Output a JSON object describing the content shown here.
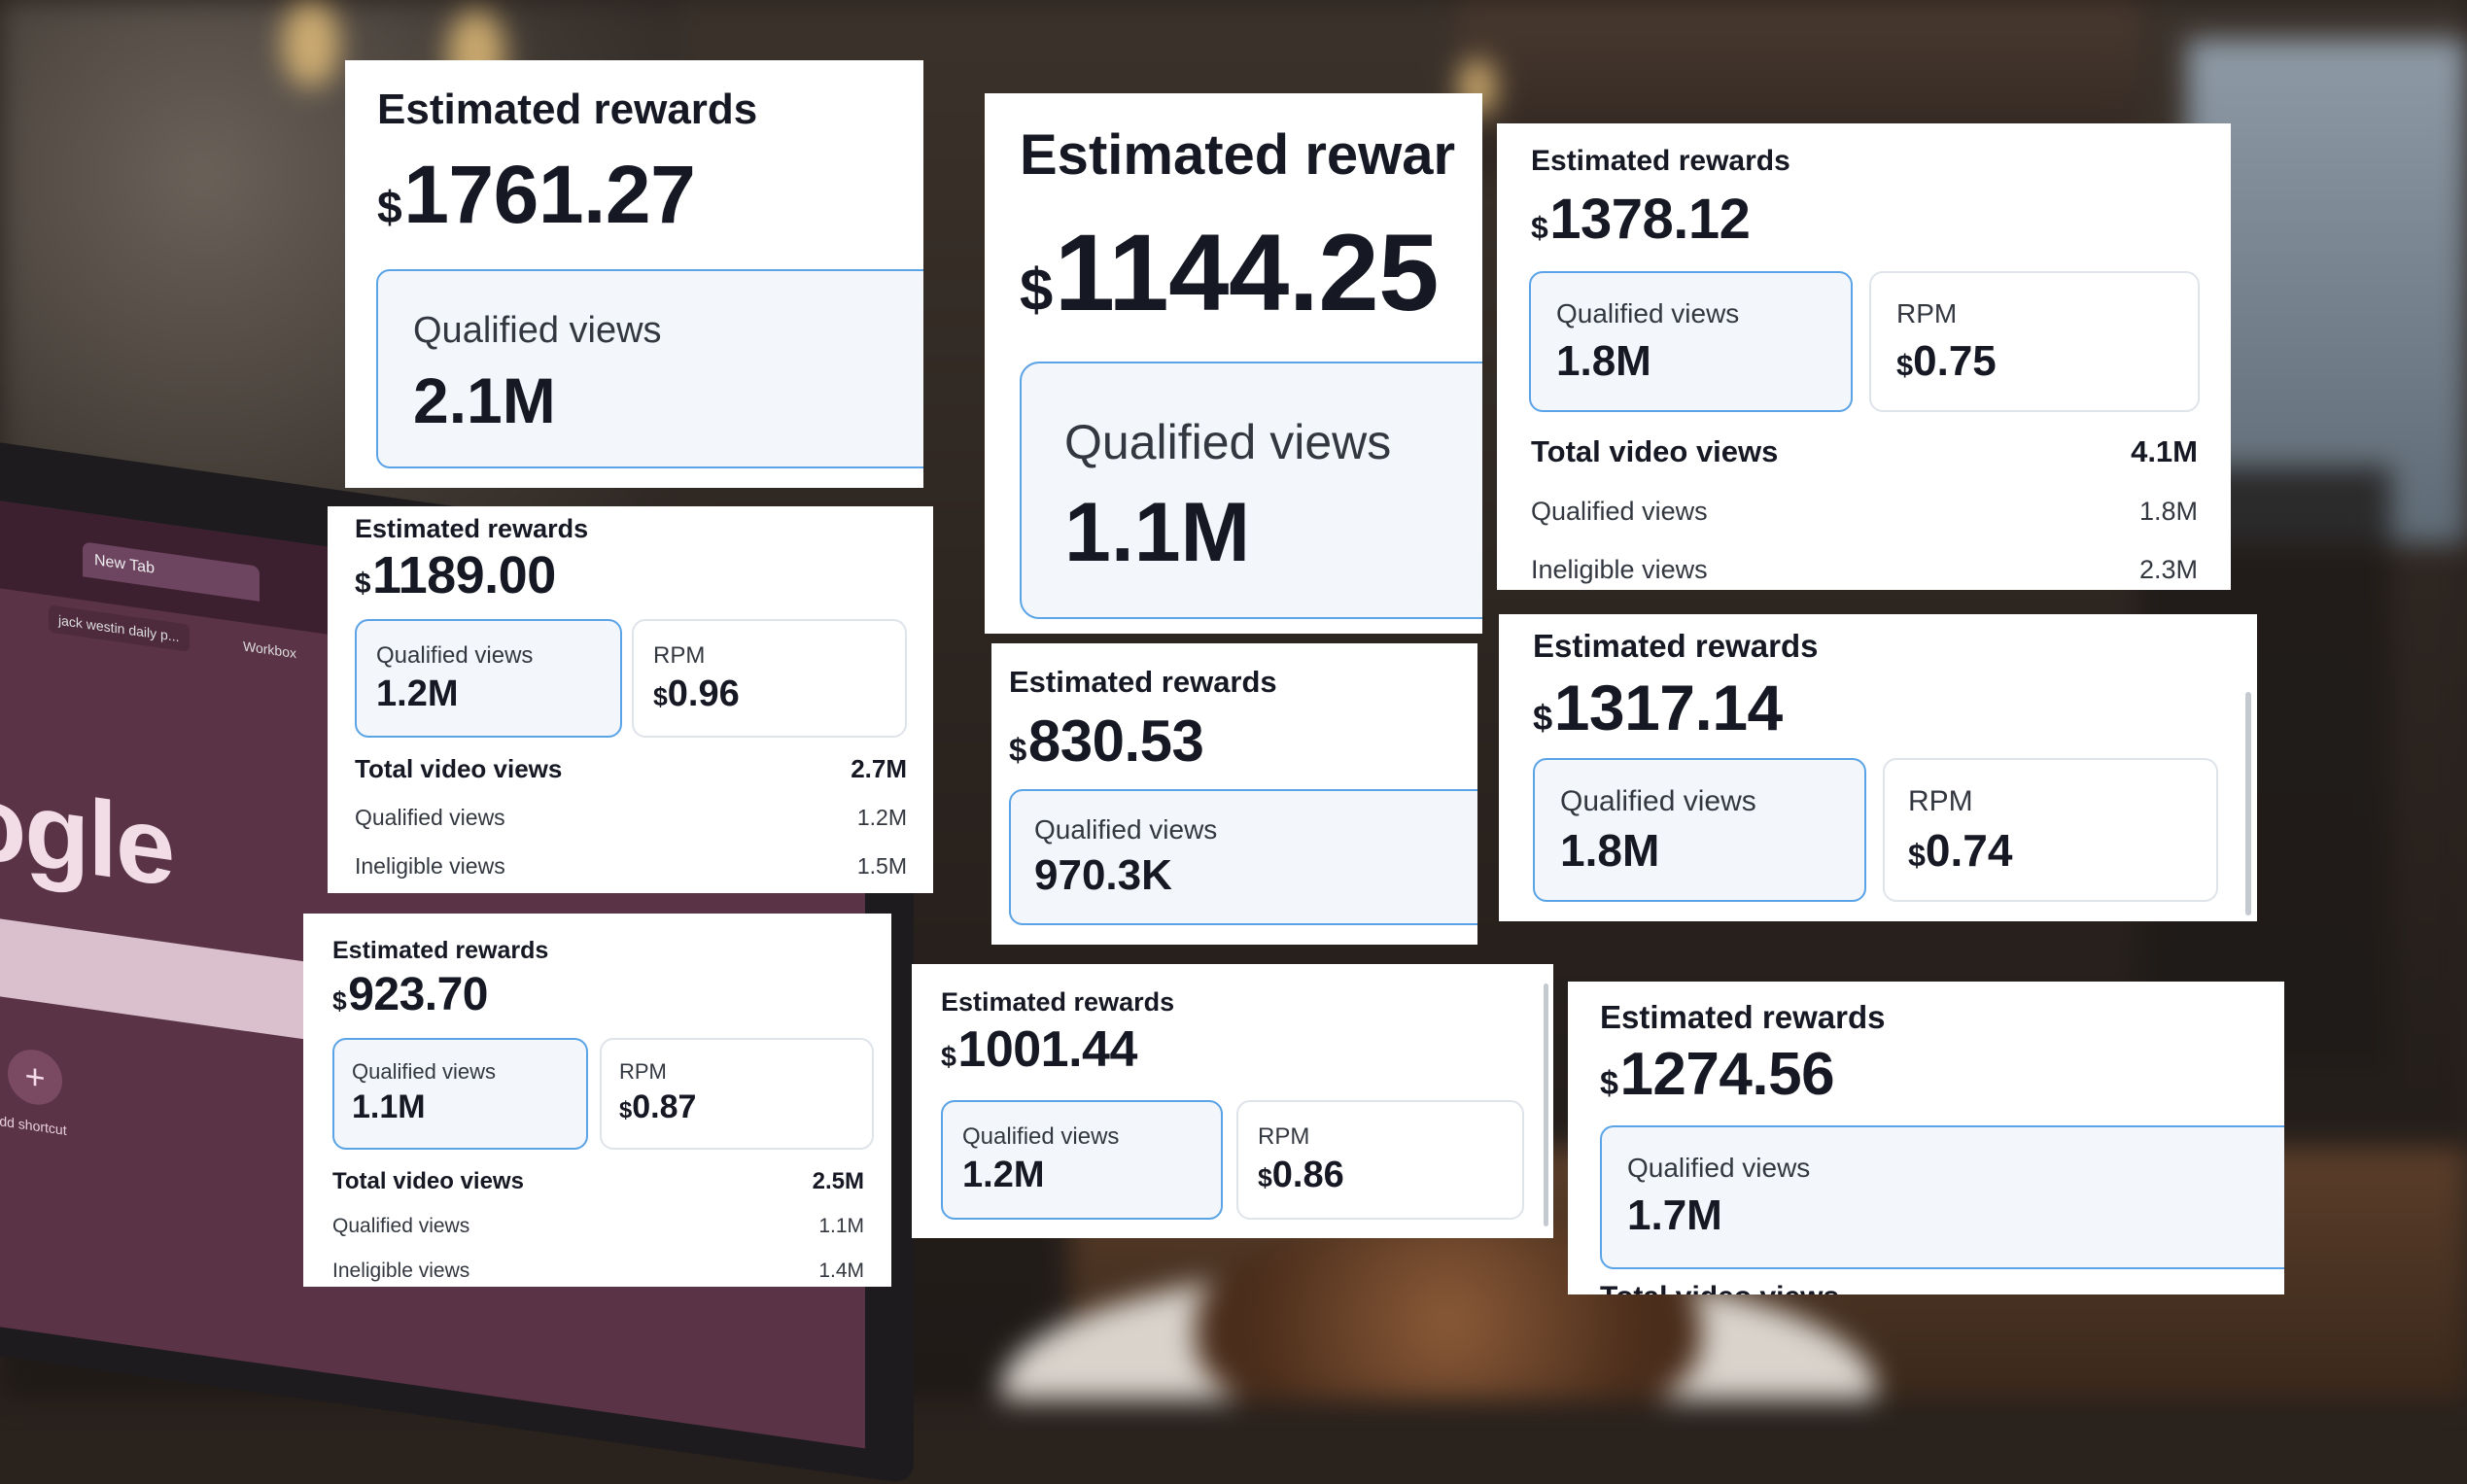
{
  "background": {
    "laptop": {
      "tab_label": "New Tab",
      "bookmark_1": "jack westin daily p...",
      "bookmark_2": "Workbox",
      "logo_text": "ogle",
      "shortcut_icon": "plus-icon",
      "shortcut_label": "Add shortcut"
    }
  },
  "cards": [
    {
      "id": "c1",
      "title": "Estimated rewards",
      "currency": "$",
      "amount": "1761.27",
      "metrics": [
        {
          "label": "Qualified views",
          "value": "2.1M",
          "selected": true
        }
      ]
    },
    {
      "id": "c2",
      "title": "Estimated rewar",
      "currency": "$",
      "amount": "1144.25",
      "metrics": [
        {
          "label": "Qualified views",
          "value": "1.1M",
          "selected": true
        }
      ]
    },
    {
      "id": "c3",
      "title": "Estimated rewards",
      "currency": "$",
      "amount": "1378.12",
      "metrics": [
        {
          "label": "Qualified views",
          "value": "1.8M",
          "selected": true
        },
        {
          "label": "RPM",
          "currency": "$",
          "value": "0.75",
          "selected": false
        }
      ],
      "rows": [
        {
          "label": "Total video views",
          "value": "4.1M",
          "bold": true
        },
        {
          "label": "Qualified views",
          "value": "1.8M"
        },
        {
          "label": "Ineligible views",
          "value": "2.3M"
        }
      ]
    },
    {
      "id": "c4",
      "title": "Estimated rewards",
      "currency": "$",
      "amount": "1189.00",
      "metrics": [
        {
          "label": "Qualified views",
          "value": "1.2M",
          "selected": true
        },
        {
          "label": "RPM",
          "currency": "$",
          "value": "0.96",
          "selected": false
        }
      ],
      "rows": [
        {
          "label": "Total video views",
          "value": "2.7M",
          "bold": true
        },
        {
          "label": "Qualified views",
          "value": "1.2M"
        },
        {
          "label": "Ineligible views",
          "value": "1.5M"
        }
      ]
    },
    {
      "id": "c5",
      "title": "Estimated rewards",
      "currency": "$",
      "amount": "830.53",
      "metrics": [
        {
          "label": "Qualified views",
          "value": "970.3K",
          "selected": true
        }
      ]
    },
    {
      "id": "c6",
      "title": "Estimated rewards",
      "currency": "$",
      "amount": "1317.14",
      "metrics": [
        {
          "label": "Qualified views",
          "value": "1.8M",
          "selected": true
        },
        {
          "label": "RPM",
          "currency": "$",
          "value": "0.74",
          "selected": false
        }
      ]
    },
    {
      "id": "c7",
      "title": "Estimated rewards",
      "currency": "$",
      "amount": "923.70",
      "metrics": [
        {
          "label": "Qualified views",
          "value": "1.1M",
          "selected": true
        },
        {
          "label": "RPM",
          "currency": "$",
          "value": "0.87",
          "selected": false
        }
      ],
      "rows": [
        {
          "label": "Total video views",
          "value": "2.5M",
          "bold": true
        },
        {
          "label": "Qualified views",
          "value": "1.1M"
        },
        {
          "label": "Ineligible views",
          "value": "1.4M"
        }
      ]
    },
    {
      "id": "c8",
      "title": "Estimated rewards",
      "currency": "$",
      "amount": "1001.44",
      "metrics": [
        {
          "label": "Qualified views",
          "value": "1.2M",
          "selected": true
        },
        {
          "label": "RPM",
          "currency": "$",
          "value": "0.86",
          "selected": false
        }
      ]
    },
    {
      "id": "c9",
      "title": "Estimated rewards",
      "currency": "$",
      "amount": "1274.56",
      "metrics": [
        {
          "label": "Qualified views",
          "value": "1.7M",
          "selected": true
        }
      ],
      "rows": [
        {
          "label": "Total video views",
          "value": "",
          "bold": true
        }
      ]
    }
  ]
}
